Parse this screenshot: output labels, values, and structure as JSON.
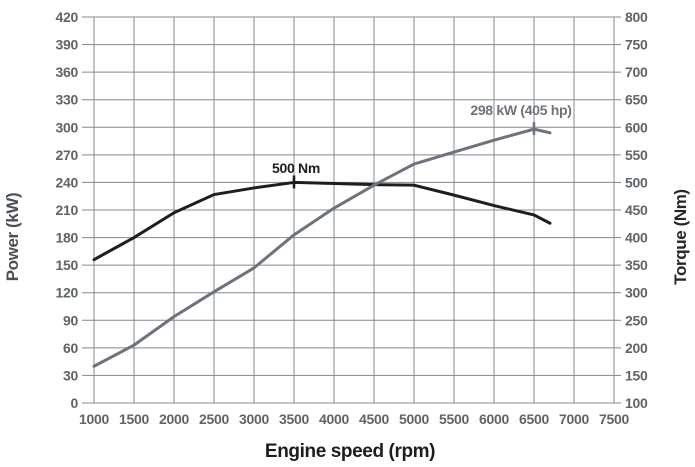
{
  "chart_data": {
    "type": "line",
    "title": "",
    "grid": true,
    "legend": "none",
    "grid_color": "#84888c",
    "x": [
      1000,
      1500,
      2000,
      2500,
      3000,
      3500,
      4000,
      4500,
      5000,
      5500,
      6000,
      6500,
      6700
    ],
    "x_axis": {
      "label": "Engine speed (rpm)",
      "min": 1000,
      "max": 7500,
      "tick_step": 500,
      "ticks": [
        1000,
        1500,
        2000,
        2500,
        3000,
        3500,
        4000,
        4500,
        5000,
        5500,
        6000,
        6500,
        7000,
        7500
      ]
    },
    "y_axis_left": {
      "label": "Power (kW)",
      "min": 0,
      "max": 420,
      "tick_step": 30,
      "ticks": [
        420,
        390,
        360,
        330,
        300,
        270,
        240,
        210,
        180,
        150,
        120,
        90,
        60,
        30,
        0
      ]
    },
    "y_axis_right": {
      "label": "Torque (Nm)",
      "min": 100,
      "max": 800,
      "tick_step": 50,
      "ticks": [
        800,
        750,
        700,
        650,
        600,
        550,
        500,
        450,
        400,
        350,
        300,
        250,
        200,
        150,
        100
      ]
    },
    "series": [
      {
        "name": "Torque (Nm)",
        "axis": "right",
        "color": "#1e1e1c",
        "values": [
          360,
          400,
          445,
          478,
          490,
          500,
          498,
          496,
          495,
          477,
          458,
          441,
          426
        ]
      },
      {
        "name": "Power (kW)",
        "axis": "left",
        "color": "#6d737a",
        "values": [
          40,
          63,
          94,
          121,
          147,
          183,
          212,
          237,
          260,
          273,
          286,
          298,
          294
        ]
      }
    ],
    "annotations": [
      {
        "text": "500 Nm",
        "series": "Torque (Nm)",
        "x": 3500,
        "value": 500,
        "color": "#1d1d1b"
      },
      {
        "text": "298 kW (405 hp)",
        "series": "Power (kW)",
        "x": 6500,
        "value": 298,
        "color": "#6d737a"
      }
    ]
  }
}
